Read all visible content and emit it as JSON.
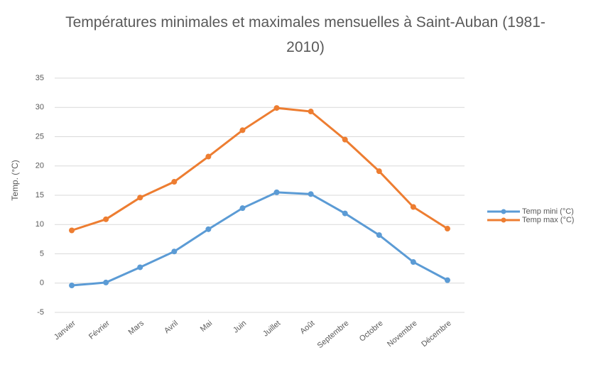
{
  "chart_data": {
    "type": "line",
    "title": "Températures minimales et maximales mensuelles à Saint-Auban (1981-2010)",
    "y_label": "Temp. (°C)",
    "categories": [
      "Janvier",
      "Février",
      "Mars",
      "Avril",
      "Mai",
      "Juin",
      "Juillet",
      "Août",
      "Septembre",
      "Octobre",
      "Novembre",
      "Décembre"
    ],
    "series": [
      {
        "name": "Temp mini (°C)",
        "color": "#5b9bd5",
        "values": [
          -0.4,
          0.1,
          2.7,
          5.4,
          9.2,
          12.8,
          15.5,
          15.2,
          11.9,
          8.2,
          3.6,
          0.5
        ]
      },
      {
        "name": "Temp max (°C)",
        "color": "#ed7d31",
        "values": [
          9.0,
          10.9,
          14.6,
          17.3,
          21.6,
          26.1,
          29.9,
          29.3,
          24.5,
          19.1,
          13.0,
          9.3
        ]
      }
    ],
    "ylim": [
      -5,
      35
    ],
    "yticks": [
      -5,
      0,
      5,
      10,
      15,
      20,
      25,
      30,
      35
    ],
    "grid": true,
    "legend": "right"
  }
}
